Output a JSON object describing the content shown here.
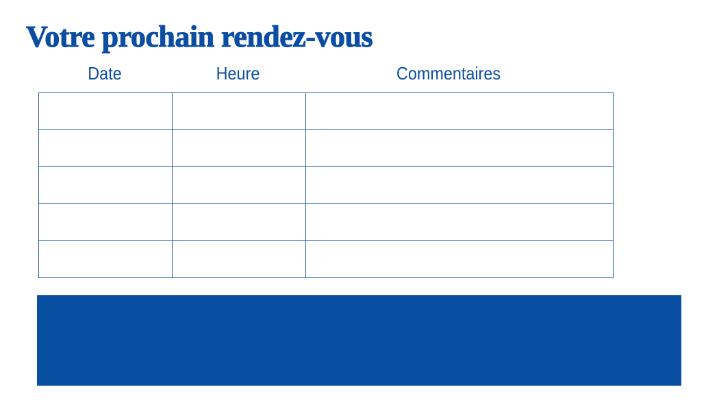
{
  "title": "Votre prochain rendez-vous",
  "columns": [
    "Date",
    "Heure",
    "Commentaires"
  ],
  "rows": [
    [
      "",
      "",
      ""
    ],
    [
      "",
      "",
      ""
    ],
    [
      "",
      "",
      ""
    ],
    [
      "",
      "",
      ""
    ],
    [
      "",
      "",
      ""
    ]
  ],
  "colors": {
    "accent": "#0a4da2",
    "band": "#084ea1"
  }
}
